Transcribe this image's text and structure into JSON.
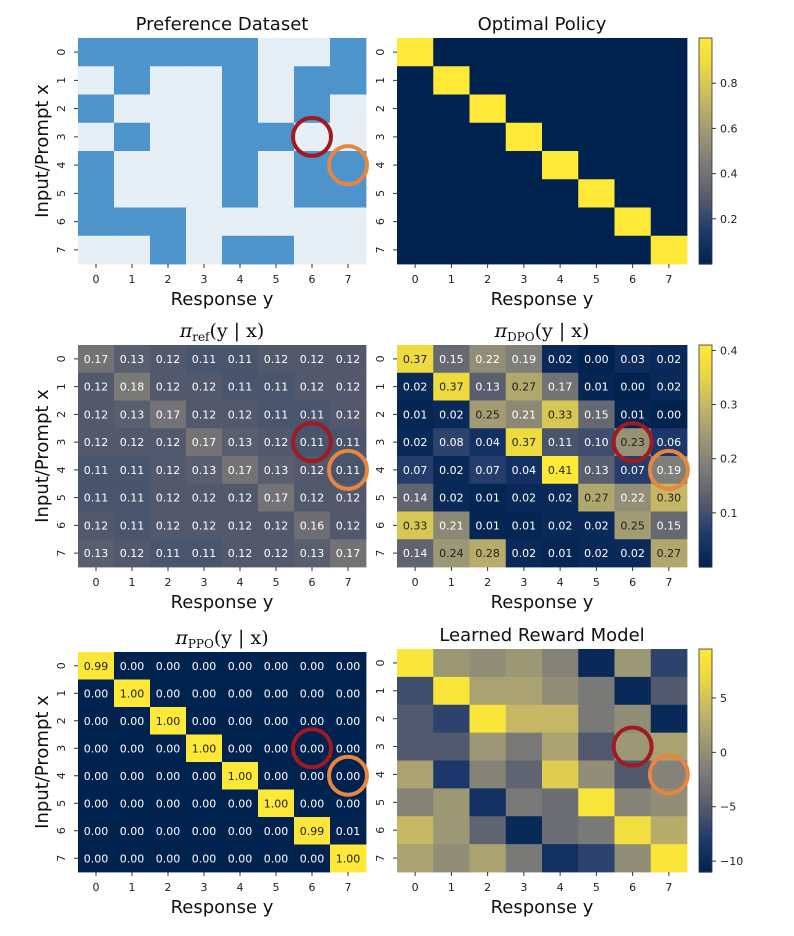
{
  "chart_data": [
    {
      "type": "heatmap",
      "title": "Preference Dataset",
      "title_style": "text",
      "xlabel": "Response y",
      "ylabel": "Input/Prompt x",
      "x_categories": [
        "0",
        "1",
        "2",
        "3",
        "4",
        "5",
        "6",
        "7"
      ],
      "y_categories": [
        "0",
        "1",
        "2",
        "3",
        "4",
        "5",
        "6",
        "7"
      ],
      "cell_text": false,
      "colorbar": false,
      "binary_colors": {
        "0": "#e6eef6",
        "1": "#4d93cc"
      },
      "values": [
        [
          1,
          1,
          1,
          1,
          1,
          0,
          0,
          1
        ],
        [
          0,
          1,
          0,
          0,
          1,
          0,
          1,
          1
        ],
        [
          1,
          0,
          0,
          0,
          1,
          0,
          1,
          0
        ],
        [
          0,
          1,
          0,
          0,
          1,
          1,
          0,
          0
        ],
        [
          1,
          0,
          0,
          0,
          1,
          0,
          1,
          1
        ],
        [
          1,
          0,
          0,
          0,
          1,
          0,
          1,
          1
        ],
        [
          1,
          1,
          1,
          0,
          0,
          0,
          0,
          0
        ],
        [
          0,
          0,
          1,
          0,
          1,
          1,
          0,
          0
        ]
      ],
      "annotations": [
        {
          "type": "circle",
          "color": "#a01a22",
          "x": 6,
          "y": 3
        },
        {
          "type": "circle",
          "color": "#e8853e",
          "x": 7,
          "y": 4
        }
      ]
    },
    {
      "type": "heatmap",
      "title": "Optimal Policy",
      "title_style": "text",
      "xlabel": "Response y",
      "ylabel": "",
      "x_categories": [
        "0",
        "1",
        "2",
        "3",
        "4",
        "5",
        "6",
        "7"
      ],
      "y_categories": [
        "0",
        "1",
        "2",
        "3",
        "4",
        "5",
        "6",
        "7"
      ],
      "cell_text": false,
      "colorbar": true,
      "colorbar_ticks": [
        "0.2",
        "0.4",
        "0.6",
        "0.8"
      ],
      "colorbar_range": [
        0,
        1
      ],
      "colormap": "cividis",
      "values": [
        [
          1,
          0,
          0,
          0,
          0,
          0,
          0,
          0
        ],
        [
          0,
          1,
          0,
          0,
          0,
          0,
          0,
          0
        ],
        [
          0,
          0,
          1,
          0,
          0,
          0,
          0,
          0
        ],
        [
          0,
          0,
          0,
          1,
          0,
          0,
          0,
          0
        ],
        [
          0,
          0,
          0,
          0,
          1,
          0,
          0,
          0
        ],
        [
          0,
          0,
          0,
          0,
          0,
          1,
          0,
          0
        ],
        [
          0,
          0,
          0,
          0,
          0,
          0,
          1,
          0
        ],
        [
          0,
          0,
          0,
          0,
          0,
          0,
          0,
          1
        ]
      ],
      "annotations": []
    },
    {
      "type": "heatmap",
      "title_parts": {
        "base": "π",
        "sub": "ref",
        "arg": "(y | x)"
      },
      "title_style": "math",
      "xlabel": "Response y",
      "ylabel": "Input/Prompt x",
      "x_categories": [
        "0",
        "1",
        "2",
        "3",
        "4",
        "5",
        "6",
        "7"
      ],
      "y_categories": [
        "0",
        "1",
        "2",
        "3",
        "4",
        "5",
        "6",
        "7"
      ],
      "cell_text": true,
      "colorbar": false,
      "colormap": "cividis",
      "color_range": [
        0.0,
        0.41
      ],
      "values": [
        [
          "0.17",
          "0.13",
          "0.12",
          "0.11",
          "0.11",
          "0.12",
          "0.12",
          "0.12"
        ],
        [
          "0.12",
          "0.18",
          "0.12",
          "0.12",
          "0.11",
          "0.11",
          "0.12",
          "0.12"
        ],
        [
          "0.12",
          "0.13",
          "0.17",
          "0.12",
          "0.12",
          "0.11",
          "0.11",
          "0.12"
        ],
        [
          "0.12",
          "0.12",
          "0.12",
          "0.17",
          "0.13",
          "0.12",
          "0.11",
          "0.11"
        ],
        [
          "0.11",
          "0.11",
          "0.12",
          "0.13",
          "0.17",
          "0.13",
          "0.12",
          "0.11"
        ],
        [
          "0.11",
          "0.11",
          "0.12",
          "0.12",
          "0.12",
          "0.17",
          "0.12",
          "0.12"
        ],
        [
          "0.12",
          "0.11",
          "0.12",
          "0.12",
          "0.12",
          "0.12",
          "0.16",
          "0.12"
        ],
        [
          "0.13",
          "0.12",
          "0.11",
          "0.11",
          "0.12",
          "0.12",
          "0.13",
          "0.17"
        ]
      ],
      "annotations": [
        {
          "type": "circle",
          "color": "#a01a22",
          "x": 6,
          "y": 3
        },
        {
          "type": "circle",
          "color": "#e8853e",
          "x": 7,
          "y": 4
        }
      ]
    },
    {
      "type": "heatmap",
      "title_parts": {
        "base": "π",
        "sub": "DPO",
        "arg": "(y | x)"
      },
      "title_style": "math",
      "xlabel": "Response y",
      "ylabel": "",
      "x_categories": [
        "0",
        "1",
        "2",
        "3",
        "4",
        "5",
        "6",
        "7"
      ],
      "y_categories": [
        "0",
        "1",
        "2",
        "3",
        "4",
        "5",
        "6",
        "7"
      ],
      "cell_text": true,
      "colorbar": true,
      "colorbar_ticks": [
        "0.1",
        "0.2",
        "0.3",
        "0.4"
      ],
      "colorbar_range": [
        0.0,
        0.41
      ],
      "colormap": "cividis",
      "color_range": [
        0.0,
        0.41
      ],
      "values": [
        [
          "0.37",
          "0.15",
          "0.22",
          "0.19",
          "0.02",
          "0.00",
          "0.03",
          "0.02"
        ],
        [
          "0.02",
          "0.37",
          "0.13",
          "0.27",
          "0.17",
          "0.01",
          "0.00",
          "0.02"
        ],
        [
          "0.01",
          "0.02",
          "0.25",
          "0.21",
          "0.33",
          "0.15",
          "0.01",
          "0.00"
        ],
        [
          "0.02",
          "0.08",
          "0.04",
          "0.37",
          "0.11",
          "0.10",
          "0.23",
          "0.06"
        ],
        [
          "0.07",
          "0.02",
          "0.07",
          "0.04",
          "0.41",
          "0.13",
          "0.07",
          "0.19"
        ],
        [
          "0.14",
          "0.02",
          "0.01",
          "0.02",
          "0.02",
          "0.27",
          "0.22",
          "0.30"
        ],
        [
          "0.33",
          "0.21",
          "0.01",
          "0.01",
          "0.02",
          "0.02",
          "0.25",
          "0.15"
        ],
        [
          "0.14",
          "0.24",
          "0.28",
          "0.02",
          "0.01",
          "0.02",
          "0.02",
          "0.27"
        ]
      ],
      "annotations": [
        {
          "type": "circle",
          "color": "#a01a22",
          "x": 6,
          "y": 3
        },
        {
          "type": "circle",
          "color": "#e8853e",
          "x": 7,
          "y": 4
        }
      ]
    },
    {
      "type": "heatmap",
      "title_parts": {
        "base": "π",
        "sub": "PPO",
        "arg": "(y | x)"
      },
      "title_style": "math",
      "xlabel": "Response y",
      "ylabel": "Input/Prompt x",
      "x_categories": [
        "0",
        "1",
        "2",
        "3",
        "4",
        "5",
        "6",
        "7"
      ],
      "y_categories": [
        "0",
        "1",
        "2",
        "3",
        "4",
        "5",
        "6",
        "7"
      ],
      "cell_text": true,
      "colorbar": false,
      "colormap": "cividis",
      "color_range": [
        0.0,
        1.0
      ],
      "values": [
        [
          "0.99",
          "0.00",
          "0.00",
          "0.00",
          "0.00",
          "0.00",
          "0.00",
          "0.00"
        ],
        [
          "0.00",
          "1.00",
          "0.00",
          "0.00",
          "0.00",
          "0.00",
          "0.00",
          "0.00"
        ],
        [
          "0.00",
          "0.00",
          "1.00",
          "0.00",
          "0.00",
          "0.00",
          "0.00",
          "0.00"
        ],
        [
          "0.00",
          "0.00",
          "0.00",
          "1.00",
          "0.00",
          "0.00",
          "0.00",
          "0.00"
        ],
        [
          "0.00",
          "0.00",
          "0.00",
          "0.00",
          "1.00",
          "0.00",
          "0.00",
          "0.00"
        ],
        [
          "0.00",
          "0.00",
          "0.00",
          "0.00",
          "0.00",
          "1.00",
          "0.00",
          "0.00"
        ],
        [
          "0.00",
          "0.00",
          "0.00",
          "0.00",
          "0.00",
          "0.00",
          "0.99",
          "0.01"
        ],
        [
          "0.00",
          "0.00",
          "0.00",
          "0.00",
          "0.00",
          "0.00",
          "0.00",
          "1.00"
        ]
      ],
      "annotations": [
        {
          "type": "circle",
          "color": "#a01a22",
          "x": 6,
          "y": 3
        },
        {
          "type": "circle",
          "color": "#e8853e",
          "x": 7,
          "y": 4
        }
      ]
    },
    {
      "type": "heatmap",
      "title": "Learned Reward Model",
      "title_style": "text",
      "xlabel": "Response y",
      "ylabel": "",
      "x_categories": [
        "0",
        "1",
        "2",
        "3",
        "4",
        "5",
        "6",
        "7"
      ],
      "y_categories": [
        "0",
        "1",
        "2",
        "3",
        "4",
        "5",
        "6",
        "7"
      ],
      "cell_text": false,
      "colorbar": true,
      "colorbar_ticks": [
        "−10",
        "−5",
        "0",
        "5"
      ],
      "colorbar_range": [
        -11,
        9.5
      ],
      "colormap": "cividis",
      "color_range": [
        -11,
        9.5
      ],
      "values": [
        [
          9,
          1,
          0,
          1,
          -1,
          -10,
          1,
          -7
        ],
        [
          -6,
          9,
          2,
          2,
          0,
          -2,
          -10,
          -5
        ],
        [
          -5,
          -7,
          9,
          4,
          4,
          -2,
          0,
          -10
        ],
        [
          -5,
          -5,
          1,
          -2,
          2,
          -5,
          1,
          2
        ],
        [
          2,
          -8,
          -1,
          -4,
          6,
          0,
          -5,
          -1
        ],
        [
          -1,
          1,
          -9,
          -2,
          -3,
          9,
          -1,
          0
        ],
        [
          4,
          1,
          -4,
          -10,
          -3,
          -2,
          8,
          3
        ],
        [
          2,
          0,
          2,
          -2,
          -9,
          -7,
          0,
          9
        ]
      ],
      "annotations": [
        {
          "type": "circle",
          "color": "#a01a22",
          "x": 6,
          "y": 3
        },
        {
          "type": "circle",
          "color": "#e8853e",
          "x": 7,
          "y": 4
        }
      ]
    }
  ]
}
